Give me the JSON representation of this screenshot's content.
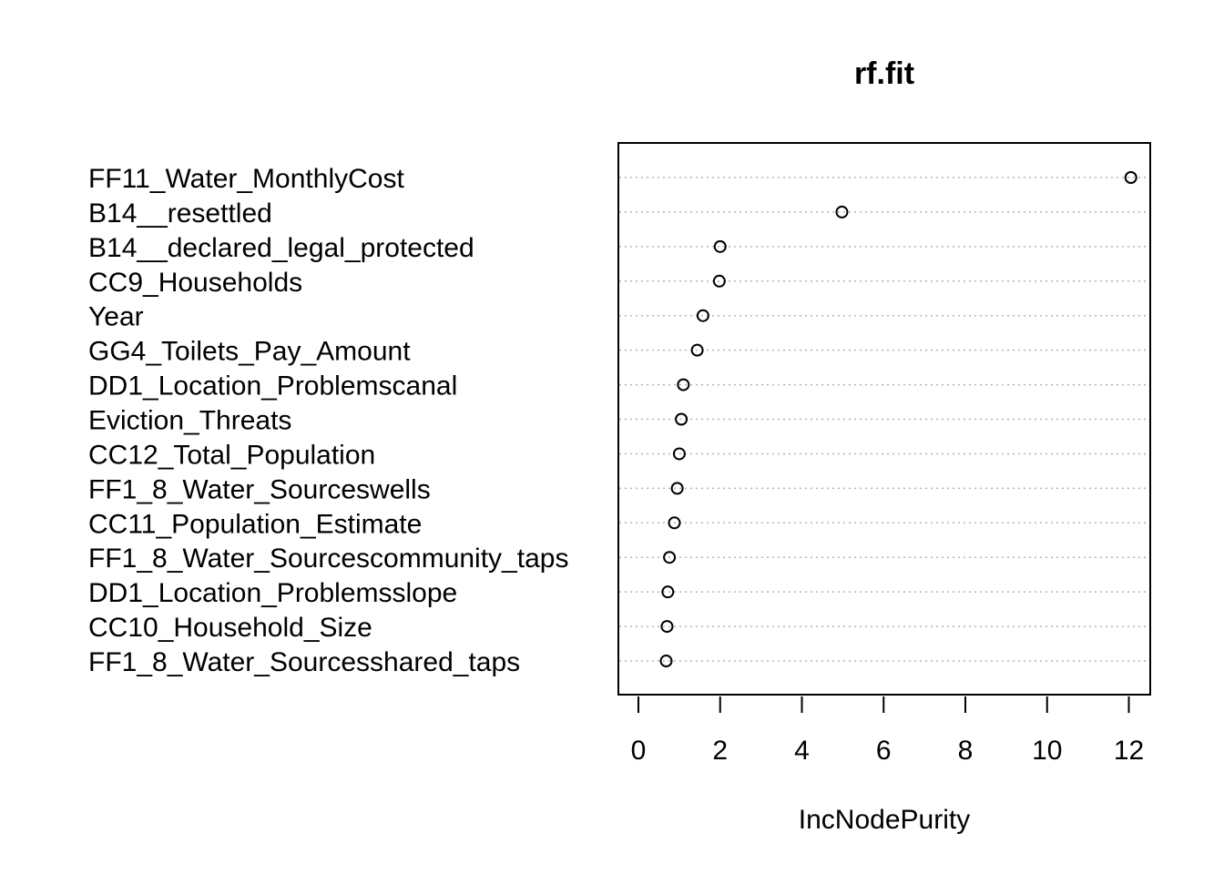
{
  "chart_data": {
    "type": "scatter",
    "subtype": "dotchart",
    "title": "rf.fit",
    "xlabel": "IncNodePurity",
    "ylabel": "",
    "xlim": [
      -0.5,
      12.5
    ],
    "xticks": [
      0,
      2,
      4,
      6,
      8,
      10,
      12
    ],
    "grid": "dotted horizontal guide lines",
    "categories": [
      "FF11_Water_MonthlyCost",
      "B14__resettled",
      "B14__declared_legal_protected",
      "CC9_Households",
      "Year",
      "GG4_Toilets_Pay_Amount",
      "DD1_Location_Problemscanal",
      "Eviction_Threats",
      "CC12_Total_Population",
      "FF1_8_Water_Sourceswells",
      "CC11_Population_Estimate",
      "FF1_8_Water_Sourcescommunity_taps",
      "DD1_Location_Problemsslope",
      "CC10_Household_Size",
      "FF1_8_Water_Sourcesshared_taps"
    ],
    "values": [
      12.05,
      4.98,
      2.0,
      1.98,
      1.58,
      1.44,
      1.1,
      1.05,
      1.0,
      0.95,
      0.88,
      0.76,
      0.72,
      0.7,
      0.68
    ]
  }
}
